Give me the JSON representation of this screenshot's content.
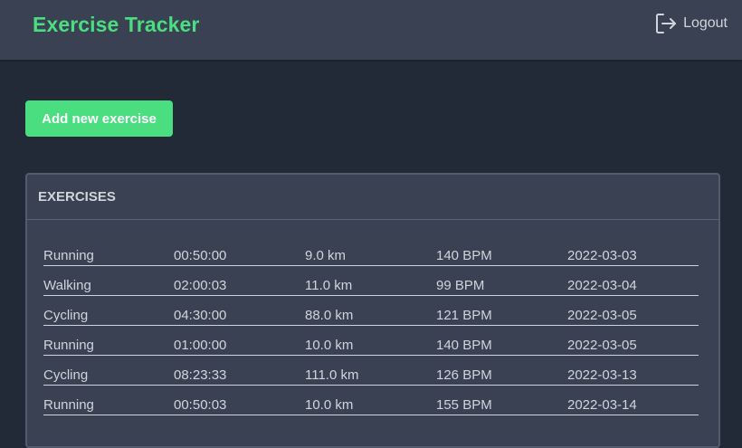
{
  "header": {
    "title": "Exercise Tracker",
    "logout_label": "Logout"
  },
  "actions": {
    "add_label": "Add new exercise"
  },
  "exercises": {
    "title": "EXERCISES",
    "rows": [
      {
        "type": "Running",
        "duration": "00:50:00",
        "distance": "9.0 km",
        "heart_rate": "140 BPM",
        "date": "2022-03-03"
      },
      {
        "type": "Walking",
        "duration": "02:00:03",
        "distance": "11.0 km",
        "heart_rate": "99 BPM",
        "date": "2022-03-04"
      },
      {
        "type": "Cycling",
        "duration": "04:30:00",
        "distance": "88.0 km",
        "heart_rate": "121 BPM",
        "date": "2022-03-05"
      },
      {
        "type": "Running",
        "duration": "01:00:00",
        "distance": "10.0 km",
        "heart_rate": "140 BPM",
        "date": "2022-03-05"
      },
      {
        "type": "Cycling",
        "duration": "08:23:33",
        "distance": "111.0 km",
        "heart_rate": "126 BPM",
        "date": "2022-03-13"
      },
      {
        "type": "Running",
        "duration": "00:50:03",
        "distance": "10.0 km",
        "heart_rate": "155 BPM",
        "date": "2022-03-14"
      }
    ]
  },
  "icons": {
    "logout": "logout-icon"
  },
  "colors": {
    "accent": "#4ade80",
    "header_bg": "#394152",
    "page_bg": "#222a38"
  }
}
